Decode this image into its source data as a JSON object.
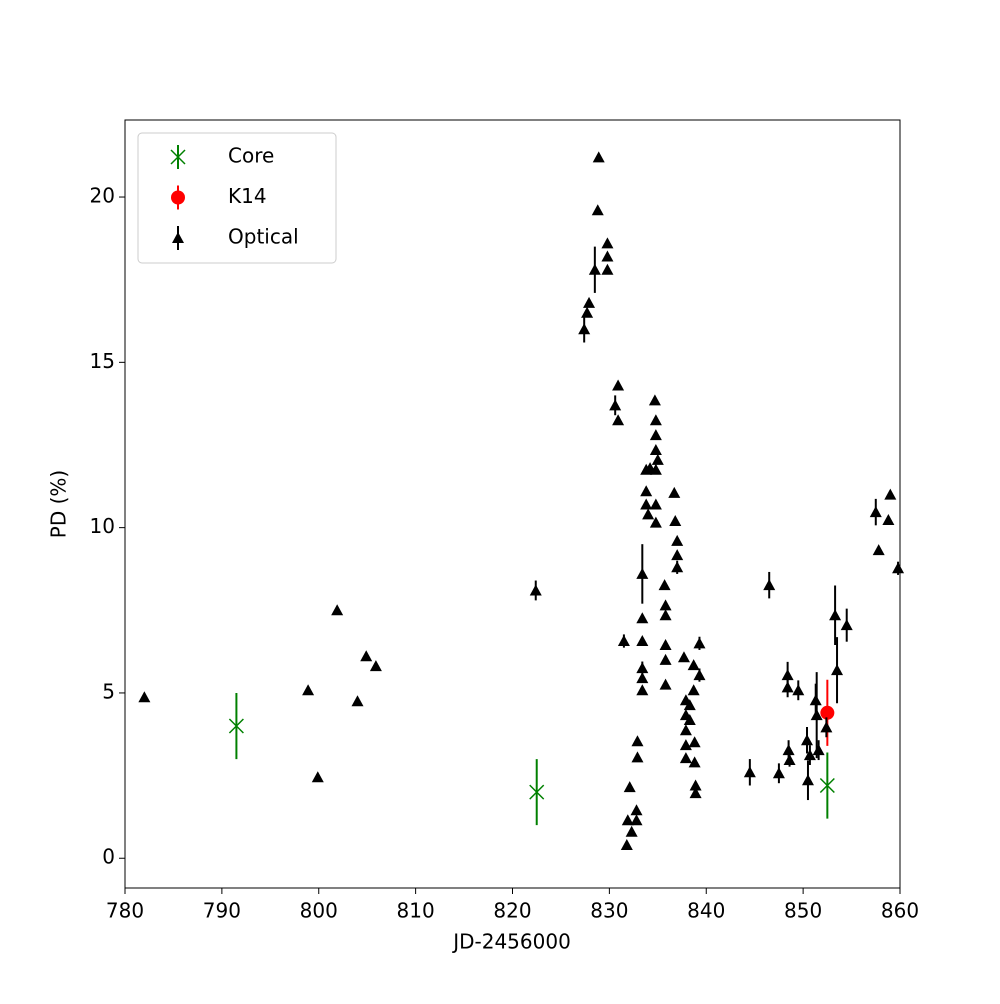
{
  "chart_data": {
    "type": "scatter",
    "xlabel": "JD-2456000",
    "ylabel": "PD (%)",
    "xlim": [
      780,
      860
    ],
    "ylim": [
      -0.9,
      22.33
    ],
    "xticks": [
      780,
      790,
      800,
      810,
      820,
      830,
      840,
      850,
      860
    ],
    "yticks": [
      0,
      5,
      10,
      15,
      20
    ],
    "legend": "upper left",
    "series": [
      {
        "name": "Core",
        "color": "#008000",
        "marker": "x",
        "x": [
          791.5,
          822.5,
          852.5
        ],
        "values": [
          4.0,
          2.0,
          2.2
        ],
        "errors": [
          1.0,
          1.0,
          1.0
        ]
      },
      {
        "name": "K14",
        "color": "#ff0000",
        "marker": "o",
        "x": [
          852.5
        ],
        "values": [
          4.4
        ],
        "errors": [
          1.0
        ]
      },
      {
        "name": "Optical",
        "color": "#000000",
        "marker": "^",
        "x": [
          782.0,
          798.9,
          799.9,
          801.9,
          804.0,
          804.9,
          805.9,
          822.4,
          827.4,
          827.7,
          827.9,
          828.5,
          828.8,
          828.9,
          829.8,
          829.8,
          829.8,
          830.6,
          830.9,
          830.9,
          831.5,
          831.8,
          831.9,
          832.1,
          832.3,
          832.8,
          832.8,
          832.9,
          832.9,
          833.4,
          833.4,
          833.4,
          833.4,
          833.4,
          833.4,
          833.8,
          833.8,
          833.8,
          834.0,
          834.2,
          834.7,
          834.8,
          834.8,
          834.8,
          835.0,
          834.8,
          834.8,
          834.8,
          835.7,
          835.8,
          835.8,
          835.8,
          835.8,
          835.8,
          836.7,
          836.8,
          837.0,
          837.0,
          837.0,
          837.7,
          837.9,
          837.9,
          837.9,
          837.9,
          837.9,
          838.3,
          838.3,
          838.7,
          838.7,
          838.8,
          838.8,
          838.9,
          838.9,
          839.3,
          839.3,
          844.5,
          846.5,
          847.5,
          848.4,
          848.4,
          848.5,
          848.6,
          849.5,
          850.4,
          850.5,
          850.7,
          851.3,
          851.4,
          851.6,
          852.4,
          853.3,
          853.5,
          854.5,
          857.5,
          857.8,
          858.8,
          859.0,
          859.8
        ],
        "values": [
          4.87,
          5.08,
          2.45,
          7.5,
          4.75,
          6.11,
          5.81,
          8.1,
          16.0,
          16.5,
          16.8,
          17.8,
          19.6,
          21.2,
          18.6,
          18.2,
          17.8,
          13.7,
          14.3,
          13.25,
          6.57,
          0.4,
          1.15,
          2.15,
          0.8,
          1.15,
          1.45,
          3.54,
          3.05,
          8.6,
          7.26,
          6.57,
          5.75,
          5.45,
          5.08,
          11.75,
          11.1,
          10.7,
          10.4,
          11.8,
          13.85,
          13.25,
          12.8,
          12.35,
          12.05,
          11.75,
          10.7,
          10.15,
          8.26,
          7.65,
          7.35,
          6.45,
          6.0,
          5.25,
          11.05,
          10.2,
          9.6,
          9.17,
          8.8,
          6.08,
          4.78,
          4.33,
          3.87,
          3.42,
          3.03,
          4.63,
          4.18,
          5.84,
          5.08,
          3.51,
          2.9,
          2.2,
          1.97,
          6.5,
          5.54,
          2.6,
          8.26,
          2.57,
          5.54,
          5.17,
          3.27,
          2.97,
          5.08,
          3.57,
          2.36,
          3.12,
          4.78,
          4.33,
          3.27,
          3.96,
          7.35,
          5.69,
          7.05,
          10.47,
          9.32,
          10.23,
          11.0,
          8.77
        ],
        "errors": [
          0.1,
          0.1,
          0.1,
          0.1,
          0.1,
          0.1,
          0.1,
          0.3,
          0.4,
          0.1,
          0.1,
          0.7,
          0.1,
          0.1,
          0.1,
          0.1,
          0.1,
          0.3,
          0.1,
          0.1,
          0.2,
          0.1,
          0.1,
          0.1,
          0.1,
          0.1,
          0.1,
          0.1,
          0.1,
          0.9,
          0.1,
          0.1,
          0.2,
          0.1,
          0.1,
          0.1,
          0.1,
          0.1,
          0.1,
          0.1,
          0.1,
          0.1,
          0.1,
          0.1,
          0.1,
          0.1,
          0.1,
          0.1,
          0.1,
          0.1,
          0.1,
          0.1,
          0.1,
          0.1,
          0.1,
          0.1,
          0.1,
          0.1,
          0.2,
          0.1,
          0.1,
          0.1,
          0.1,
          0.1,
          0.1,
          0.1,
          0.1,
          0.1,
          0.1,
          0.1,
          0.1,
          0.1,
          0.1,
          0.2,
          0.2,
          0.4,
          0.4,
          0.3,
          0.4,
          0.3,
          0.3,
          0.2,
          0.3,
          0.4,
          0.6,
          0.3,
          0.5,
          1.3,
          0.3,
          0.3,
          0.9,
          1.0,
          0.5,
          0.4,
          0.1,
          0.1,
          0.1,
          0.2
        ]
      }
    ]
  }
}
